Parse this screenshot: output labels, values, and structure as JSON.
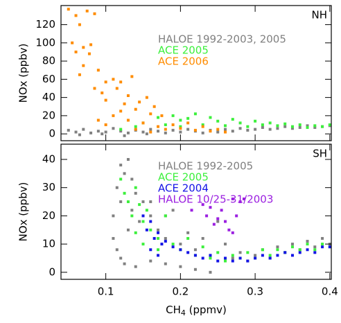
{
  "chart_data": [
    {
      "type": "scatter",
      "label": "NH",
      "ylabel": "NOx (ppbv)",
      "xlim": [
        0.04,
        0.402
      ],
      "xticks": [
        0.1,
        0.2,
        0.3,
        0.4
      ],
      "ylim": [
        -7.5,
        141
      ],
      "yticks": [
        0,
        20,
        40,
        60,
        80,
        100,
        120
      ],
      "series": [
        {
          "name": "HALOE 1992-2003, 2005",
          "color": "#808080",
          "x": [
            0.05,
            0.06,
            0.07,
            0.08,
            0.09,
            0.1,
            0.11,
            0.12,
            0.13,
            0.14,
            0.15,
            0.16,
            0.17,
            0.18,
            0.19,
            0.2,
            0.21,
            0.22,
            0.23,
            0.24,
            0.25,
            0.26,
            0.27,
            0.28,
            0.29,
            0.3,
            0.31,
            0.32,
            0.33,
            0.34,
            0.35,
            0.36,
            0.37,
            0.38,
            0.39,
            0.4,
            0.065,
            0.095,
            0.125,
            0.155
          ],
          "values": [
            4,
            2,
            5,
            1,
            3,
            2,
            6,
            3,
            1,
            4,
            2,
            5,
            3,
            1,
            4,
            2,
            5,
            3,
            1,
            4,
            2,
            5,
            3,
            6,
            4,
            5,
            7,
            5,
            6,
            8,
            6,
            7,
            9,
            7,
            8,
            9,
            -1,
            0,
            -2,
            0
          ]
        },
        {
          "name": "ACE 2005",
          "color": "#3cf03c",
          "x": [
            0.15,
            0.17,
            0.19,
            0.2,
            0.21,
            0.22,
            0.24,
            0.25,
            0.27,
            0.28,
            0.3,
            0.31,
            0.32,
            0.33,
            0.34,
            0.35,
            0.36,
            0.37,
            0.38,
            0.39,
            0.4,
            0.23,
            0.26,
            0.29,
            0.18,
            0.2,
            0.12,
            0.14
          ],
          "values": [
            12,
            18,
            20,
            15,
            17,
            22,
            18,
            14,
            16,
            12,
            14,
            10,
            12,
            9,
            11,
            8,
            10,
            7,
            9,
            8,
            10,
            10,
            9,
            8,
            10,
            8,
            5,
            8
          ]
        },
        {
          "name": "ACE 2006",
          "color": "#ff8c00",
          "x": [
            0.05,
            0.06,
            0.065,
            0.075,
            0.085,
            0.055,
            0.06,
            0.07,
            0.08,
            0.07,
            0.078,
            0.065,
            0.09,
            0.1,
            0.085,
            0.095,
            0.1,
            0.11,
            0.115,
            0.12,
            0.125,
            0.13,
            0.135,
            0.14,
            0.145,
            0.155,
            0.16,
            0.165,
            0.175,
            0.12,
            0.11,
            0.13,
            0.15,
            0.17,
            0.18,
            0.2,
            0.22,
            0.24,
            0.26,
            0.14,
            0.16,
            0.19,
            0.21,
            0.23,
            0.25,
            0.1,
            0.09
          ],
          "values": [
            137,
            130,
            120,
            135,
            132,
            100,
            90,
            95,
            98,
            75,
            88,
            65,
            70,
            57,
            50,
            45,
            37,
            60,
            50,
            57,
            33,
            42,
            63,
            27,
            35,
            40,
            22,
            30,
            20,
            25,
            20,
            15,
            12,
            8,
            5,
            6,
            4,
            3,
            2,
            5,
            2,
            10,
            12,
            8,
            5,
            10,
            15
          ]
        }
      ]
    },
    {
      "type": "scatter",
      "label": "SH",
      "ylabel": "NOx (ppbv)",
      "xlabel_parts": [
        "CH",
        "4",
        " (ppmv)"
      ],
      "xlim": [
        0.04,
        0.402
      ],
      "xticks": [
        0.1,
        0.2,
        0.3,
        0.4
      ],
      "ylim": [
        -2.5,
        45.4
      ],
      "yticks": [
        0,
        10,
        20,
        30,
        40
      ],
      "series": [
        {
          "name": "HALOE 1992-2005",
          "color": "#808080",
          "x": [
            0.11,
            0.115,
            0.12,
            0.125,
            0.13,
            0.135,
            0.12,
            0.11,
            0.115,
            0.12,
            0.125,
            0.13,
            0.135,
            0.14,
            0.145,
            0.15,
            0.16,
            0.17,
            0.18,
            0.19,
            0.2,
            0.21,
            0.22,
            0.23,
            0.24,
            0.25,
            0.26,
            0.27,
            0.28,
            0.29,
            0.3,
            0.31,
            0.32,
            0.33,
            0.34,
            0.35,
            0.36,
            0.37,
            0.38,
            0.39,
            0.4,
            0.14,
            0.16,
            0.18,
            0.2,
            0.22,
            0.24,
            0.16,
            0.18
          ],
          "values": [
            20,
            30,
            38,
            35,
            40,
            33,
            25,
            12,
            8,
            5,
            3,
            15,
            22,
            28,
            18,
            25,
            20,
            15,
            12,
            22,
            10,
            14,
            8,
            12,
            6,
            18,
            10,
            5,
            7,
            4,
            6,
            8,
            5,
            9,
            7,
            10,
            8,
            11,
            9,
            12,
            10,
            2,
            4,
            3,
            2,
            1,
            0,
            25,
            20
          ]
        },
        {
          "name": "ACE 2005",
          "color": "#3cf03c",
          "x": [
            0.12,
            0.125,
            0.13,
            0.135,
            0.14,
            0.145,
            0.15,
            0.155,
            0.16,
            0.17,
            0.18,
            0.19,
            0.2,
            0.21,
            0.22,
            0.23,
            0.24,
            0.25,
            0.26,
            0.27,
            0.28,
            0.29,
            0.3,
            0.31,
            0.32,
            0.33,
            0.34,
            0.35,
            0.36,
            0.37,
            0.38,
            0.39,
            0.4,
            0.15,
            0.17,
            0.14
          ],
          "values": [
            33,
            28,
            25,
            20,
            30,
            24,
            18,
            22,
            15,
            12,
            20,
            10,
            8,
            12,
            6,
            9,
            5,
            7,
            4,
            6,
            5,
            7,
            5,
            8,
            6,
            8,
            7,
            9,
            8,
            10,
            8,
            10,
            9,
            10,
            8,
            14
          ]
        },
        {
          "name": "ACE 2004",
          "color": "#1414e6",
          "x": [
            0.15,
            0.155,
            0.16,
            0.165,
            0.17,
            0.175,
            0.18,
            0.19,
            0.2,
            0.21,
            0.22,
            0.23,
            0.24,
            0.25,
            0.26,
            0.27,
            0.28,
            0.29,
            0.3,
            0.31,
            0.32,
            0.33,
            0.34,
            0.35,
            0.36,
            0.37,
            0.38,
            0.39,
            0.4,
            0.16,
            0.17
          ],
          "values": [
            20,
            15,
            18,
            12,
            14,
            10,
            11,
            9,
            8,
            7,
            6,
            5,
            6,
            4,
            5,
            4,
            5,
            4,
            5,
            6,
            5,
            6,
            7,
            6,
            7,
            8,
            7,
            9,
            9,
            8,
            6
          ]
        },
        {
          "name": "HALOE 10/25-31/2003",
          "color": "#9b1fe0",
          "x": [
            0.215,
            0.23,
            0.235,
            0.24,
            0.245,
            0.25,
            0.255,
            0.26,
            0.265,
            0.27,
            0.275,
            0.28,
            0.285,
            0.27
          ],
          "values": [
            22,
            24,
            20,
            23,
            17,
            19,
            22,
            18,
            15,
            26,
            20,
            25,
            26,
            14
          ]
        }
      ]
    }
  ]
}
